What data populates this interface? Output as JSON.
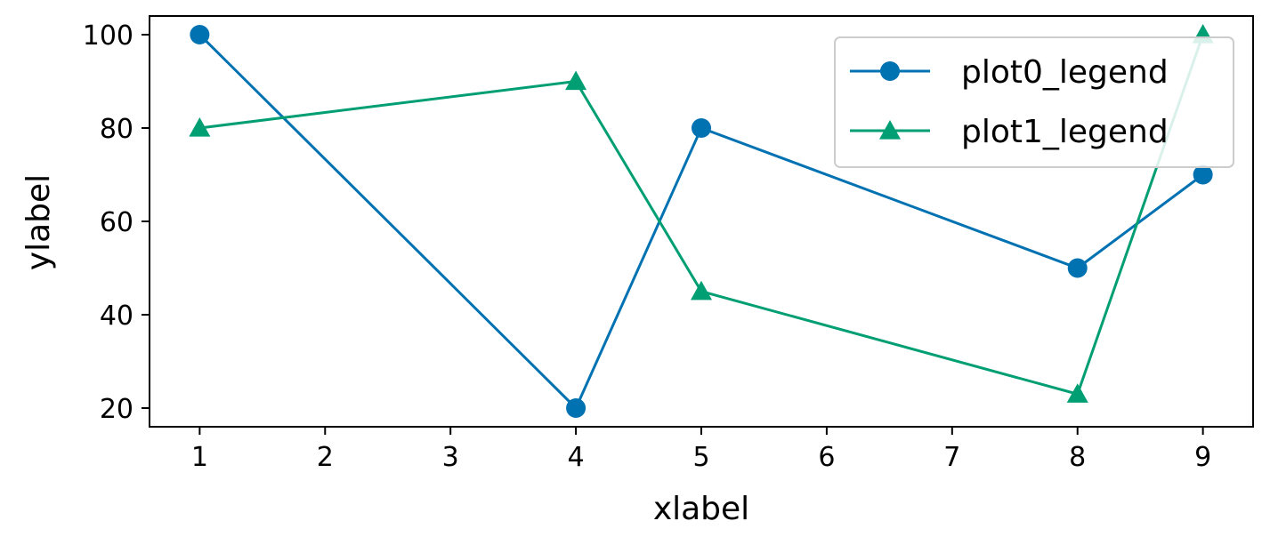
{
  "chart_data": {
    "type": "line",
    "title": "",
    "xlabel": "xlabel",
    "ylabel": "ylabel",
    "xlim": [
      0.6,
      9.4
    ],
    "ylim": [
      16,
      104
    ],
    "xticks": [
      1,
      2,
      3,
      4,
      5,
      6,
      7,
      8,
      9
    ],
    "yticks": [
      20,
      40,
      60,
      80,
      100
    ],
    "grid": false,
    "legend_position": "top-right",
    "series": [
      {
        "name": "plot0_legend",
        "color": "#0072B2",
        "marker": "circle",
        "x": [
          1,
          4,
          5,
          8,
          9
        ],
        "y": [
          100,
          20,
          80,
          50,
          70
        ]
      },
      {
        "name": "plot1_legend",
        "color": "#009E73",
        "marker": "triangle",
        "x": [
          1,
          4,
          5,
          8,
          9
        ],
        "y": [
          80,
          90,
          45,
          23,
          100
        ]
      }
    ]
  }
}
